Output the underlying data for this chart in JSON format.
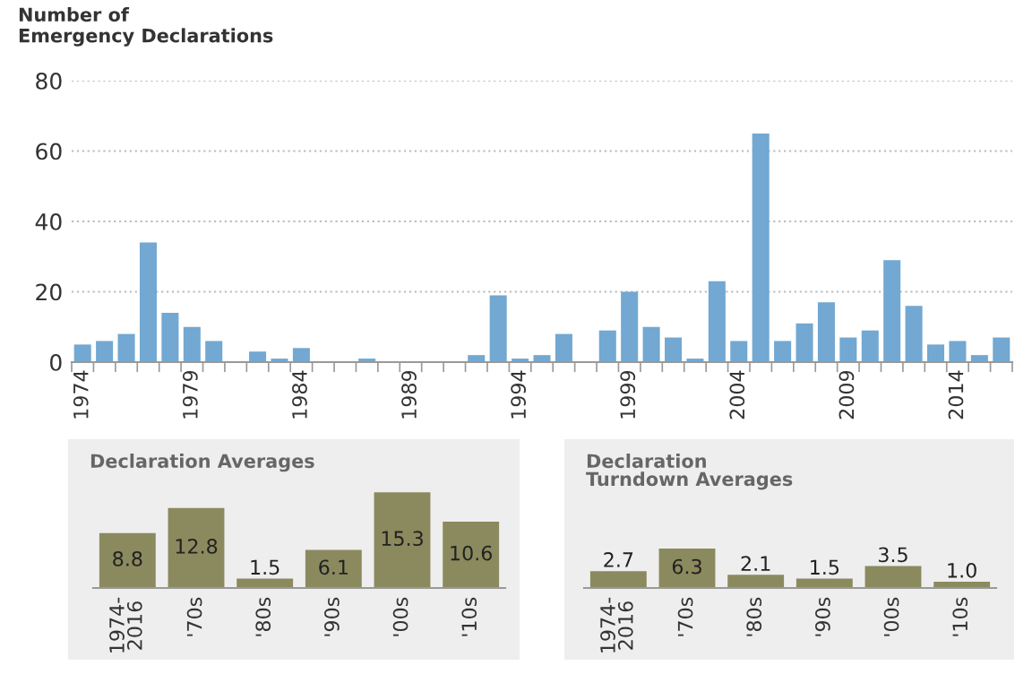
{
  "chart_data": [
    {
      "type": "bar",
      "title": "Number of\nEmergency Declarations",
      "categories": [
        "1974",
        null,
        null,
        null,
        null,
        "1979",
        null,
        null,
        null,
        null,
        "1984",
        null,
        null,
        null,
        null,
        "1989",
        null,
        null,
        null,
        null,
        "1994",
        null,
        null,
        null,
        null,
        "1999",
        null,
        null,
        null,
        null,
        "2004",
        null,
        null,
        null,
        null,
        "2009",
        null,
        null,
        null,
        null,
        "2014",
        null,
        null
      ],
      "values": [
        5,
        6,
        8,
        34,
        14,
        10,
        6,
        0,
        3,
        1,
        4,
        0,
        0,
        1,
        0,
        0,
        0,
        0,
        2,
        19,
        1,
        2,
        8,
        0,
        9,
        20,
        10,
        7,
        1,
        23,
        6,
        65,
        6,
        11,
        17,
        7,
        9,
        29,
        16,
        5,
        6,
        2,
        7
      ],
      "color": "#72a8d1",
      "ylim": [
        0,
        80
      ],
      "yticks": [
        0,
        20,
        40,
        60,
        80
      ],
      "grid": "y"
    },
    {
      "type": "bar",
      "title": "Declaration Averages",
      "categories": [
        "1974-\n2016",
        "'70s",
        "'80s",
        "'90s",
        "'00s",
        "'10s"
      ],
      "values": [
        8.8,
        12.8,
        1.5,
        6.1,
        15.3,
        10.6
      ],
      "color": "#8b8a5e",
      "data_labels": true
    },
    {
      "type": "bar",
      "title": "Declaration\nTurndown Averages",
      "categories": [
        "1974-\n2016",
        "'70s",
        "'80s",
        "'90s",
        "'00s",
        "'10s"
      ],
      "values": [
        2.7,
        6.3,
        2.1,
        1.5,
        3.5,
        1.0
      ],
      "value_labels": [
        "2.7",
        "6.3",
        "2.1",
        "1.5",
        "3.5",
        "1.0"
      ],
      "color": "#8b8a5e"
    }
  ]
}
